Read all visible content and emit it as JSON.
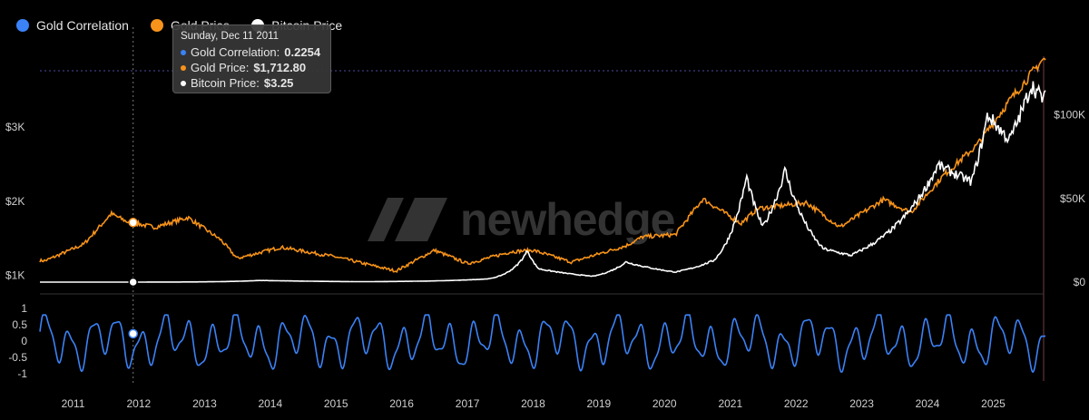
{
  "legend": {
    "items": [
      {
        "label": "Gold Correlation",
        "color": "#3b82f6"
      },
      {
        "label": "Gold Price",
        "color": "#f7931a"
      },
      {
        "label": "Bitcoin Price",
        "color": "#ffffff"
      }
    ]
  },
  "tooltip": {
    "date": "Sunday, Dec 11 2011",
    "rows": [
      {
        "label": "Gold Correlation:",
        "value": "0.2254",
        "color": "#3b82f6"
      },
      {
        "label": "Gold Price:",
        "value": "$1,712.80",
        "color": "#f7931a"
      },
      {
        "label": "Bitcoin Price:",
        "value": "$3.25",
        "color": "#ffffff"
      }
    ]
  },
  "watermark": "newhedge",
  "colors": {
    "gold": "#f7931a",
    "bitcoin": "#ffffff",
    "correlation": "#3b82f6",
    "background": "#000000"
  },
  "chart_data": [
    {
      "type": "line",
      "title": "",
      "x_axis": {
        "type": "date",
        "ticks": [
          "2011",
          "2012",
          "2013",
          "2014",
          "2015",
          "2016",
          "2017",
          "2018",
          "2019",
          "2020",
          "2021",
          "2022",
          "2023",
          "2024",
          "2025"
        ],
        "range": [
          "2010-07-15",
          "2025-11-01"
        ]
      },
      "y_left": {
        "label": "",
        "ticks": [
          "$1K",
          "$2K",
          "$3K"
        ],
        "range": [
          850,
          3950
        ]
      },
      "y_right": {
        "label": "",
        "ticks": [
          "$0",
          "$50K",
          "$100K"
        ],
        "range": [
          0,
          135000
        ]
      },
      "series": [
        {
          "name": "Gold Price",
          "axis": "left",
          "x": [
            "2010-08",
            "2011-03",
            "2011-08",
            "2011-11",
            "2012-04",
            "2012-10",
            "2013-04",
            "2013-07",
            "2014-03",
            "2015-01",
            "2015-12",
            "2016-07",
            "2017-01",
            "2017-09",
            "2018-01",
            "2018-08",
            "2019-06",
            "2019-09",
            "2020-03",
            "2020-08",
            "2021-03",
            "2021-06",
            "2022-03",
            "2022-09",
            "2023-05",
            "2023-10",
            "2024-04",
            "2024-10",
            "2025-04",
            "2025-10"
          ],
          "values": [
            1200,
            1420,
            1830,
            1720,
            1650,
            1780,
            1480,
            1230,
            1380,
            1250,
            1060,
            1340,
            1160,
            1320,
            1340,
            1180,
            1400,
            1520,
            1550,
            2030,
            1700,
            1900,
            1980,
            1650,
            2020,
            1850,
            2350,
            2750,
            3350,
            3900
          ]
        },
        {
          "name": "Bitcoin Price",
          "axis": "right",
          "x": [
            "2010-08",
            "2013-11",
            "2014-06",
            "2015-06",
            "2016-06",
            "2017-05",
            "2017-12",
            "2018-02",
            "2018-12",
            "2019-06",
            "2020-03",
            "2020-10",
            "2021-04",
            "2021-07",
            "2021-11",
            "2022-06",
            "2022-11",
            "2023-06",
            "2024-03",
            "2024-09",
            "2024-12",
            "2025-04",
            "2025-08",
            "2025-10"
          ],
          "values": [
            0.07,
            1000,
            650,
            250,
            650,
            2000,
            19000,
            8000,
            3500,
            12000,
            6000,
            13000,
            63000,
            33000,
            67000,
            20000,
            16000,
            30000,
            70000,
            60000,
            100000,
            85000,
            118000,
            110000
          ]
        }
      ]
    },
    {
      "type": "line",
      "title": "",
      "y_axis": {
        "ticks": [
          "1",
          "0.5",
          "0",
          "-0.5",
          "-1"
        ],
        "range": [
          -1,
          1
        ]
      },
      "series": [
        {
          "name": "Gold Correlation",
          "description_range": [
            -0.95,
            0.8
          ],
          "sample_point": {
            "x": "2011-12-11",
            "y": 0.2254
          }
        }
      ]
    }
  ]
}
